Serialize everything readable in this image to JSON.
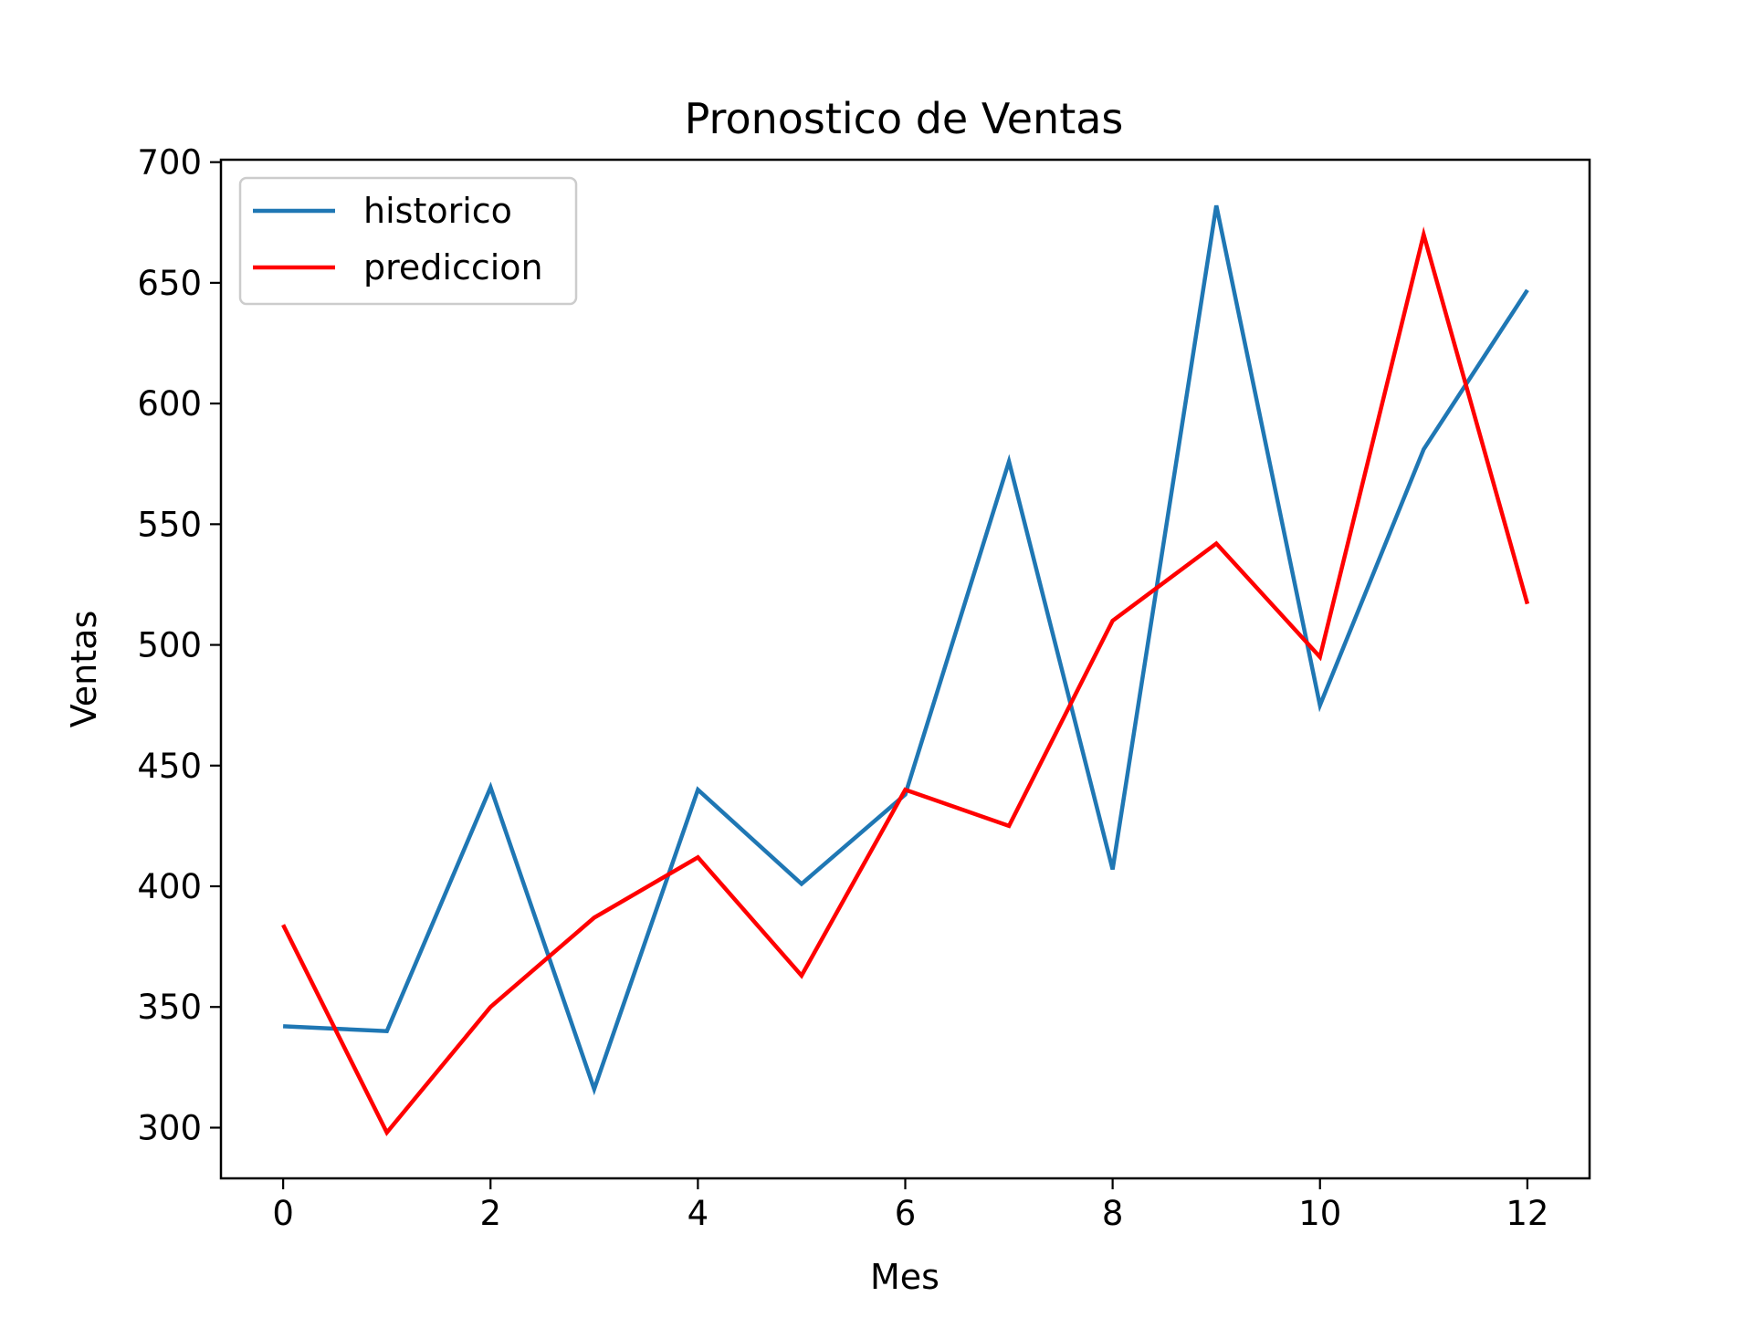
{
  "chart_data": {
    "type": "line",
    "title": "Pronostico de Ventas",
    "xlabel": "Mes",
    "ylabel": "Ventas",
    "xlim": [
      -0.6,
      12.6
    ],
    "ylim": [
      279,
      701
    ],
    "xticks": [
      0,
      2,
      4,
      6,
      8,
      10,
      12
    ],
    "yticks": [
      300,
      350,
      400,
      450,
      500,
      550,
      600,
      650,
      700
    ],
    "x": [
      0,
      1,
      2,
      3,
      4,
      5,
      6,
      7,
      8,
      9,
      10,
      11,
      12
    ],
    "grid": false,
    "legend_position": "top-left",
    "series": [
      {
        "name": "historico",
        "color": "#1f77b4",
        "values": [
          342,
          340,
          441,
          316,
          440,
          401,
          438,
          576,
          407,
          682,
          475,
          581,
          647
        ]
      },
      {
        "name": "prediccion",
        "color": "#ff0000",
        "values": [
          384,
          298,
          350,
          387,
          412,
          363,
          440,
          425,
          510,
          542,
          495,
          670,
          517
        ]
      }
    ]
  }
}
